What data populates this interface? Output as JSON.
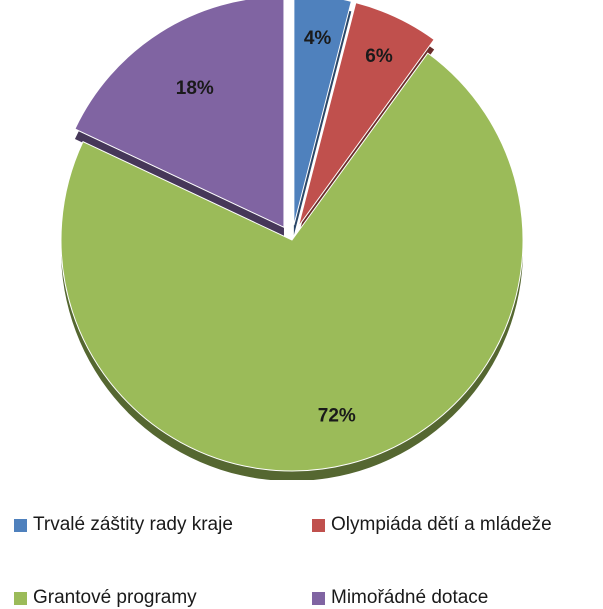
{
  "chart_data": {
    "type": "pie",
    "exploded": true,
    "three_d": true,
    "title": "",
    "legend_position": "bottom",
    "slices": [
      {
        "name": "Trvalé záštity rady kraje",
        "value": 4,
        "label": "4%",
        "color": "#4f81bd"
      },
      {
        "name": "Olympiáda dětí a mládeže",
        "value": 6,
        "label": "6%",
        "color": "#c0504d"
      },
      {
        "name": "Grantové programy",
        "value": 72,
        "label": "72%",
        "color": "#9bbb59"
      },
      {
        "name": "Mimořádné dotace",
        "value": 18,
        "label": "18%",
        "color": "#8064a2"
      }
    ]
  }
}
